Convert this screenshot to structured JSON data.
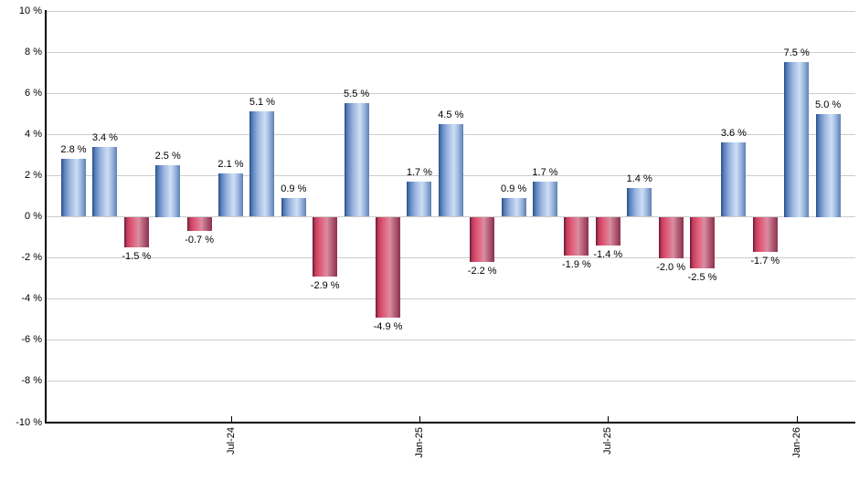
{
  "chart_data": {
    "type": "bar",
    "title": "",
    "description": "Monthly returns bar chart, positive months blue, negative months red",
    "unit": "%",
    "bars": [
      {
        "value": 2.8,
        "label": "2.8 %"
      },
      {
        "value": 3.4,
        "label": "3.4 %"
      },
      {
        "value": -1.5,
        "label": "-1.5 %"
      },
      {
        "value": 2.5,
        "label": "2.5 %"
      },
      {
        "value": -0.7,
        "label": "-0.7 %"
      },
      {
        "value": 2.1,
        "label": "2.1 %"
      },
      {
        "value": 5.1,
        "label": "5.1 %"
      },
      {
        "value": 0.9,
        "label": "0.9 %"
      },
      {
        "value": -2.9,
        "label": "-2.9 %"
      },
      {
        "value": 5.5,
        "label": "5.5 %"
      },
      {
        "value": -4.9,
        "label": "-4.9 %"
      },
      {
        "value": 1.7,
        "label": "1.7 %"
      },
      {
        "value": 4.5,
        "label": "4.5 %"
      },
      {
        "value": -2.2,
        "label": "-2.2 %"
      },
      {
        "value": 0.9,
        "label": "0.9 %"
      },
      {
        "value": 1.7,
        "label": "1.7 %"
      },
      {
        "value": -1.9,
        "label": "-1.9 %"
      },
      {
        "value": -1.4,
        "label": "-1.4 %"
      },
      {
        "value": 1.4,
        "label": "1.4 %"
      },
      {
        "value": -2.0,
        "label": "-2.0 %"
      },
      {
        "value": -2.5,
        "label": "-2.5 %"
      },
      {
        "value": 3.6,
        "label": "3.6 %"
      },
      {
        "value": -1.7,
        "label": "-1.7 %"
      },
      {
        "value": 7.5,
        "label": "7.5 %"
      },
      {
        "value": 5.0,
        "label": "5.0 %"
      }
    ],
    "x_ticks": [
      {
        "label": "Jul-24",
        "bar_index": 5
      },
      {
        "label": "Jan-25",
        "bar_index": 11
      },
      {
        "label": "Jul-25",
        "bar_index": 17
      },
      {
        "label": "Jan-26",
        "bar_index": 23
      }
    ],
    "y_axis": {
      "tick_labels": [
        "10 %",
        "8 %",
        "6 %",
        "4 %",
        "2 %",
        "0 %",
        "-2 %",
        "-4 %",
        "-6 %",
        "-8 %",
        "-10 %"
      ],
      "min": -10,
      "max": 10,
      "step": 2
    },
    "grid": true,
    "legend": "none",
    "colors": {
      "background": "#ffffff",
      "gridline": "#cccccc",
      "axis": "#000000",
      "label_text": "#000000",
      "positive_bar_main": "#7fa3d6",
      "negative_bar_main": "#cf5070",
      "positive_bar_gradient": [
        [
          "#2b4d86",
          0
        ],
        [
          "#5a81bc",
          12
        ],
        [
          "#9ab5e0",
          35
        ],
        [
          "#cfdef4",
          62
        ],
        [
          "#9db8e0",
          80
        ],
        [
          "#5e80b2",
          100
        ]
      ],
      "negative_bar_gradient": [
        [
          "#6e1632",
          0
        ],
        [
          "#c04061",
          12
        ],
        [
          "#e25874",
          30
        ],
        [
          "#d98da2",
          58
        ],
        [
          "#b05a74",
          80
        ],
        [
          "#8c3150",
          100
        ]
      ]
    }
  }
}
